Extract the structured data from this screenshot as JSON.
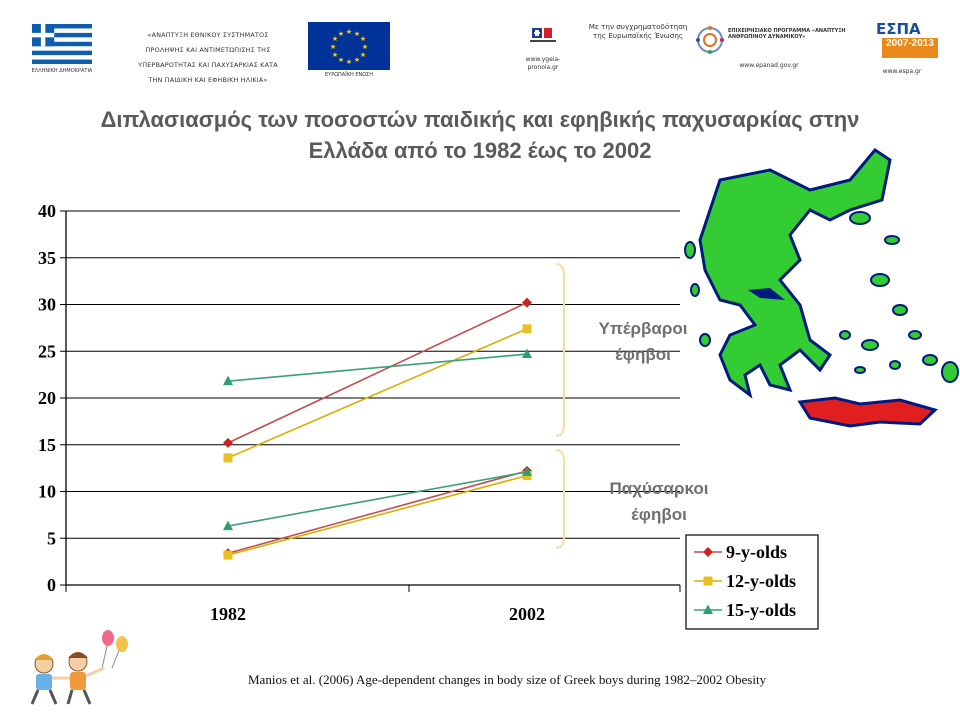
{
  "header": {
    "greek_flag_caption": "ΕΛΛΗΝΙΚΗ ΔΗΜΟΚΡΑΤΙΑ",
    "program_lines": [
      "«ΑΝΑΠΤΥΞΗ ΕΘΝΙΚΟΥ ΣΥΣΤΗΜΑΤΟΣ",
      "ΠΡΟΛΗΨΗΣ ΚΑΙ ΑΝΤΙΜΕΤΩΠΙΣΗΣ ΤΗΣ",
      "ΥΠΕΡΒΑΡΟΤΗΤΑΣ ΚΑΙ ΠΑΧΥΣΑΡΚΙΑΣ ΚΑΤΑ",
      "ΤΗΝ ΠΑΙΔΙΚΗ ΚΑΙ ΕΦΗΒΙΚΗ ΗΛΙΚΙΑ»"
    ],
    "eu_flag_caption": "ΕΥΡΩΠΑΪΚΗ ΕΝΩΣΗ",
    "ygeia_caption": "www.ygeia-pronoia.gr",
    "cofund_text": "Με την συγχρηματοδότηση της Ευρωπαϊκής Ένωσης",
    "epanad_title": "ΕΠΙΧΕΙΡΗΣΙΑΚΟ ΠΡΟΓΡΑΜΜΑ «ΑΝΑΠΤΥΞΗ ΑΝΘΡΩΠΙΝΟΥ ΔΥΝΑΜΙΚΟΥ»",
    "epanad_caption": "www.epanad.gov.gr",
    "espa_word": "ΕΣΠΑ",
    "espa_years": "2007-2013",
    "espa_caption": "www.espa.gr"
  },
  "slide_title_lines": [
    "Διπλασιασμός των ποσοστών παιδικής και εφηβικής παχυσαρκίας στην",
    "Ελλάδα από το 1982 έως το 2002"
  ],
  "annotations": {
    "overweight": [
      "Υπέρβαροι",
      "έφηβοι"
    ],
    "obese": [
      "Παχύσαρκοι",
      "έφηβοι"
    ]
  },
  "citation": "Manios et al. (2006) Age-dependent changes in body size of Greek boys during 1982–2002 Obesity",
  "colors": {
    "nine": "#cc2222",
    "twelve": "#e8c020",
    "fifteen": "#2e9e6e",
    "nine_line": "#c0504d",
    "twelve_line": "#d4b000",
    "fifteen_line": "#3aa07a",
    "bracket": "#f2e0a0",
    "map_green": "#33cc33",
    "map_red": "#e02020"
  },
  "chart_data": {
    "type": "line",
    "categories": [
      "1982",
      "2002"
    ],
    "ylim": [
      0,
      40
    ],
    "yticks": [
      0,
      5,
      10,
      15,
      20,
      25,
      30,
      35,
      40
    ],
    "grid": true,
    "legend_position": "bottom-right",
    "series": [
      {
        "name": "9-y-olds",
        "marker": "diamond",
        "groups": [
          {
            "values": [
              15.2,
              30.2
            ]
          },
          {
            "values": [
              3.4,
              12.2
            ]
          }
        ]
      },
      {
        "name": "12-y-olds",
        "marker": "square",
        "groups": [
          {
            "values": [
              13.6,
              27.4
            ]
          },
          {
            "values": [
              3.2,
              11.7
            ]
          }
        ]
      },
      {
        "name": "15-y-olds",
        "marker": "triangle",
        "groups": [
          {
            "values": [
              21.8,
              24.7
            ]
          },
          {
            "values": [
              6.3,
              12.1
            ]
          }
        ]
      }
    ]
  }
}
